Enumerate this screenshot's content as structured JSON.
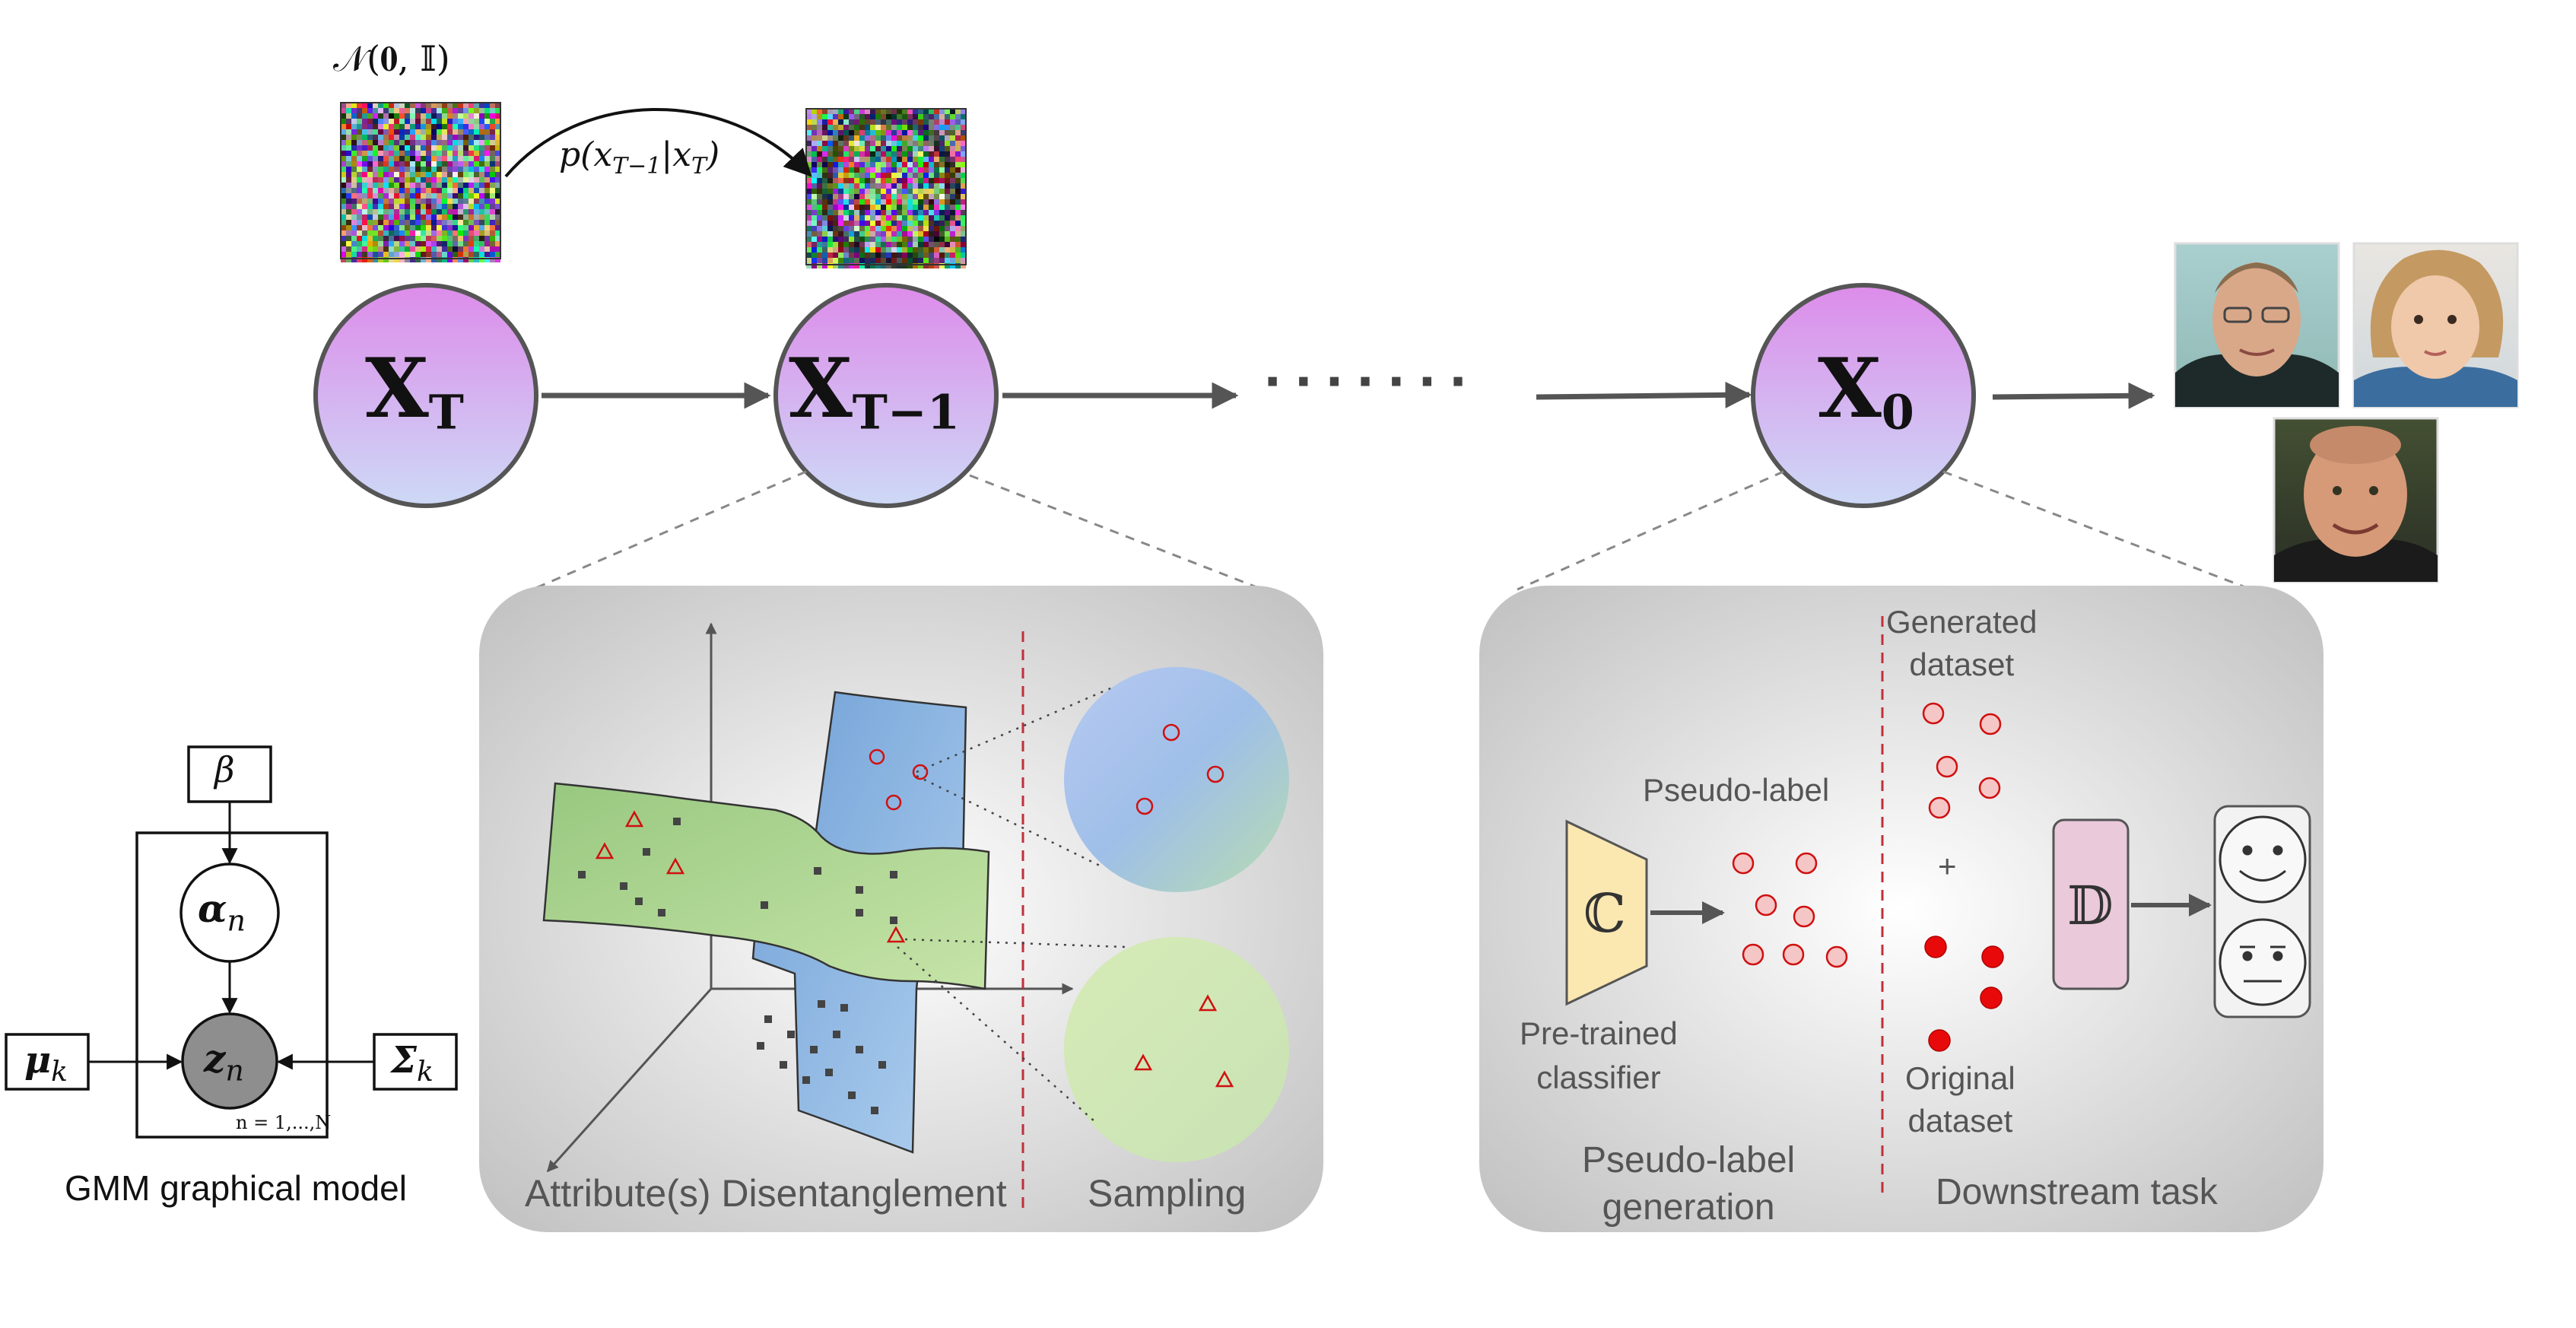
{
  "chain": {
    "prior_label": "𝒩(𝟎, 𝕀)",
    "transition_label": "p(x_{T−1}|x_T)",
    "nodes": [
      {
        "main": "X",
        "sub": "T"
      },
      {
        "main": "X",
        "sub": "T−1"
      },
      {
        "main": "X",
        "sub": "0"
      }
    ],
    "ellipsis": "·······"
  },
  "gmm": {
    "beta": "β",
    "alpha": "α",
    "alpha_sub": "n",
    "mu": "μ",
    "mu_sub": "k",
    "z": "z",
    "z_sub": "n",
    "sigma": "Σ",
    "sigma_sub": "k",
    "plate_label": "n = 1,...,N",
    "caption": "GMM graphical model"
  },
  "left_panel": {
    "title_disentangle": "Attribute(s) Disentanglement",
    "title_sampling": "Sampling"
  },
  "right_panel": {
    "classifier_symbol": "ℂ",
    "classifier_label": "Pre-trained\nclassifier",
    "pseudo_label": "Pseudo-label",
    "generated_label": "Generated\ndataset",
    "plus": "+",
    "original_label": "Original\ndataset",
    "downstream_symbol": "𝔻",
    "title_generation": "Pseudo-label\ngeneration",
    "title_downstream": "Downstream task"
  },
  "colors": {
    "node_top": "#df8fea",
    "node_bottom": "#c9d6f5",
    "arrow": "#555555",
    "marker_red": "#d01010",
    "sheet_green": "#a9d38c",
    "sheet_blue": "#7aa8db",
    "classifier_fill": "#fbe7b0",
    "downstream_fill": "#e8c6d8"
  }
}
